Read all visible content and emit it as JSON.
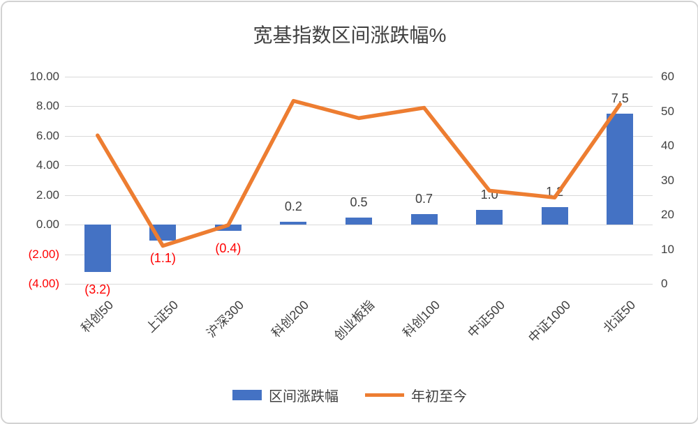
{
  "title": "宽基指数区间涨跌幅%",
  "chart_data": {
    "type": "combo",
    "title": "宽基指数区间涨跌幅%",
    "categories": [
      "科创50",
      "上证50",
      "沪深300",
      "科创200",
      "创业板指",
      "科创100",
      "中证500",
      "中证1000",
      "北证50"
    ],
    "series": [
      {
        "name": "区间涨跌幅",
        "type": "bar",
        "axis": "left",
        "color": "#4472C4",
        "values": [
          -3.2,
          -1.1,
          -0.4,
          0.2,
          0.5,
          0.7,
          1.0,
          1.2,
          7.5
        ],
        "data_labels": [
          "(3.2)",
          "(1.1)",
          "(0.4)",
          "0.2",
          "0.5",
          "0.7",
          "1.0",
          "1.2",
          "7.5"
        ]
      },
      {
        "name": "年初至今",
        "type": "line",
        "axis": "right",
        "color": "#ED7D31",
        "values": [
          43,
          11,
          17,
          53,
          48,
          51,
          27,
          25,
          52
        ]
      }
    ],
    "left_axis": {
      "min": -4,
      "max": 10,
      "step": 2,
      "labels": [
        "10.00",
        "8.00",
        "6.00",
        "4.00",
        "2.00",
        "0.00",
        "(2.00)",
        "(4.00)"
      ]
    },
    "right_axis": {
      "min": 0,
      "max": 60,
      "step": 10,
      "labels": [
        "60",
        "50",
        "40",
        "30",
        "20",
        "10",
        "0"
      ]
    },
    "legend_position": "bottom",
    "grid": true,
    "colors": {
      "bar": "#4472C4",
      "line": "#ED7D31",
      "negative_text": "#FF0000",
      "axis_text": "#404040",
      "gridline": "#D9D9D9"
    }
  }
}
